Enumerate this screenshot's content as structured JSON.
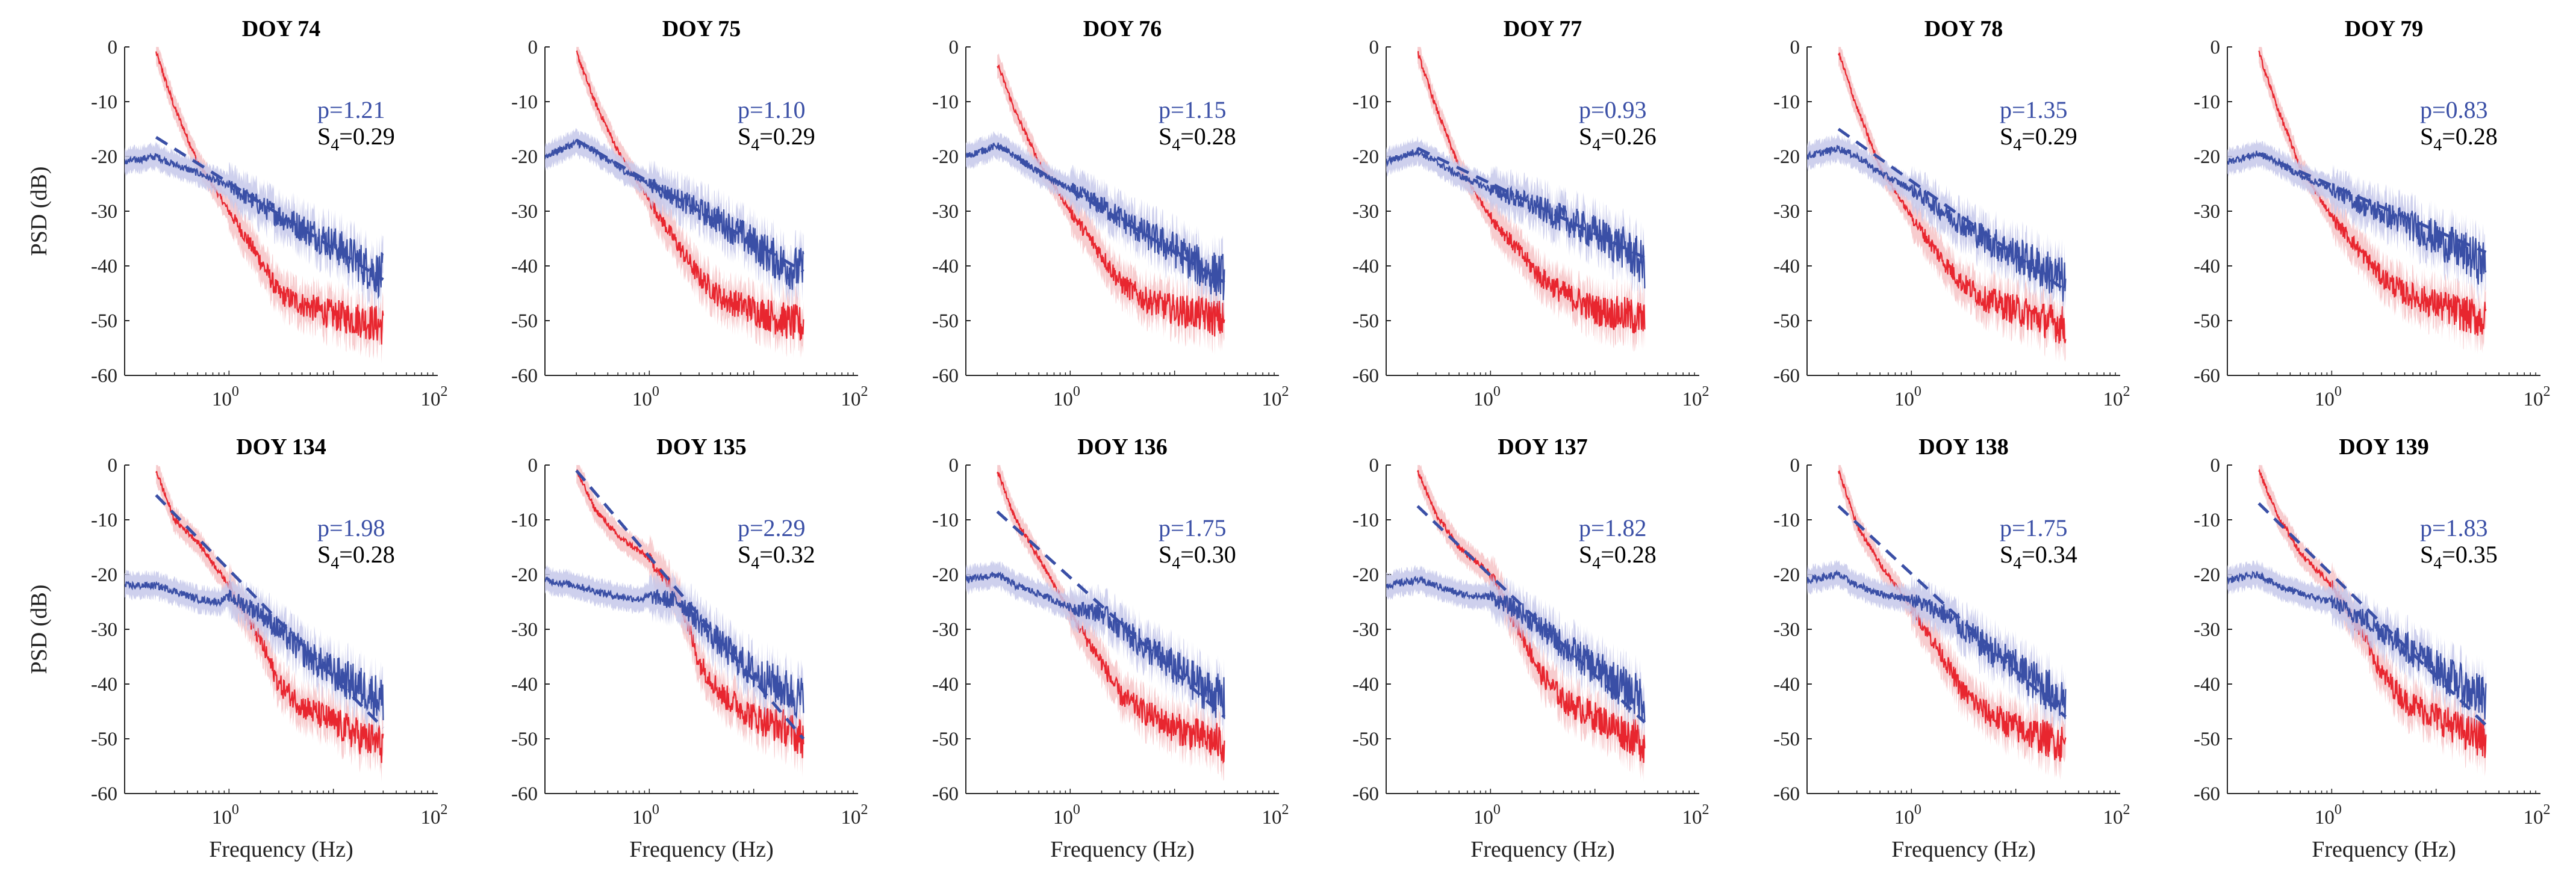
{
  "chart_data": {
    "type": "line",
    "layout": "2 rows x 6 columns",
    "xlabel": "Frequency (Hz)",
    "ylabel": "PSD (dB)",
    "xscale": "log",
    "xlim": [
      0.1,
      100
    ],
    "ylim": [
      -60,
      0
    ],
    "xticks": [
      {
        "value": 1,
        "base": "10",
        "exp": "0"
      },
      {
        "value": 100,
        "base": "10",
        "exp": "2"
      }
    ],
    "yticks": [
      0,
      -10,
      -20,
      -30,
      -40,
      -50,
      -60
    ],
    "series_colors": {
      "blue": "#3a4fa6",
      "red": "#e8262f",
      "blue_band": "#c5c8ea",
      "red_band": "#f6c3c6"
    },
    "panels": [
      {
        "title": "DOY 74",
        "p": "p=1.21",
        "s4": "=0.29",
        "fit": [
          [
            0.2,
            -16.5
          ],
          [
            30,
            -42.5
          ]
        ],
        "blue": [
          [
            0.1,
            -21
          ],
          [
            0.2,
            -20
          ],
          [
            0.3,
            -21.5
          ],
          [
            0.5,
            -23
          ],
          [
            1,
            -25.5
          ],
          [
            2,
            -29
          ],
          [
            5,
            -33
          ],
          [
            10,
            -36
          ],
          [
            20,
            -40
          ],
          [
            30,
            -42
          ]
        ],
        "red": [
          [
            0.2,
            -1
          ],
          [
            0.3,
            -11
          ],
          [
            0.5,
            -21
          ],
          [
            1,
            -30
          ],
          [
            2,
            -39
          ],
          [
            3,
            -45
          ],
          [
            5,
            -47
          ],
          [
            10,
            -49
          ],
          [
            20,
            -50
          ],
          [
            30,
            -51
          ]
        ]
      },
      {
        "title": "DOY 75",
        "p": "p=1.10",
        "s4": "=0.29",
        "fit": [
          [
            0.2,
            -17
          ],
          [
            30,
            -41
          ]
        ],
        "blue": [
          [
            0.1,
            -20
          ],
          [
            0.2,
            -17.5
          ],
          [
            0.3,
            -19
          ],
          [
            0.5,
            -22
          ],
          [
            1,
            -25
          ],
          [
            2,
            -28
          ],
          [
            5,
            -32
          ],
          [
            10,
            -36
          ],
          [
            20,
            -40
          ],
          [
            30,
            -41
          ]
        ],
        "red": [
          [
            0.2,
            -1
          ],
          [
            0.3,
            -10
          ],
          [
            0.5,
            -19
          ],
          [
            1,
            -28
          ],
          [
            2,
            -37
          ],
          [
            3,
            -42
          ],
          [
            5,
            -46
          ],
          [
            10,
            -48
          ],
          [
            20,
            -50
          ],
          [
            30,
            -51
          ]
        ]
      },
      {
        "title": "DOY 76",
        "p": "p=1.15",
        "s4": "=0.28",
        "fit": [
          [
            0.2,
            -18
          ],
          [
            30,
            -43
          ]
        ],
        "blue": [
          [
            0.1,
            -20
          ],
          [
            0.2,
            -18
          ],
          [
            0.3,
            -20
          ],
          [
            0.5,
            -23
          ],
          [
            1,
            -26
          ],
          [
            2,
            -29
          ],
          [
            5,
            -34
          ],
          [
            10,
            -37
          ],
          [
            20,
            -41
          ],
          [
            30,
            -42
          ]
        ],
        "red": [
          [
            0.2,
            -3
          ],
          [
            0.3,
            -12
          ],
          [
            0.5,
            -21
          ],
          [
            1,
            -30
          ],
          [
            2,
            -38
          ],
          [
            3,
            -43
          ],
          [
            5,
            -46
          ],
          [
            10,
            -48
          ],
          [
            20,
            -49
          ],
          [
            30,
            -50
          ]
        ]
      },
      {
        "title": "DOY 77",
        "p": "p=0.93",
        "s4": "=0.26",
        "fit": [
          [
            0.2,
            -18.5
          ],
          [
            30,
            -38.5
          ]
        ],
        "blue": [
          [
            0.1,
            -21
          ],
          [
            0.2,
            -19
          ],
          [
            0.3,
            -21
          ],
          [
            0.5,
            -23.5
          ],
          [
            1,
            -26
          ],
          [
            2,
            -28
          ],
          [
            5,
            -31.5
          ],
          [
            10,
            -34
          ],
          [
            20,
            -37
          ],
          [
            30,
            -40
          ]
        ],
        "red": [
          [
            0.2,
            -1
          ],
          [
            0.3,
            -11
          ],
          [
            0.5,
            -22
          ],
          [
            1,
            -31
          ],
          [
            2,
            -38
          ],
          [
            3,
            -42
          ],
          [
            5,
            -45
          ],
          [
            10,
            -48
          ],
          [
            20,
            -49
          ],
          [
            30,
            -50
          ]
        ]
      },
      {
        "title": "DOY 78",
        "p": "p=1.35",
        "s4": "=0.29",
        "fit": [
          [
            0.2,
            -15
          ],
          [
            30,
            -44.5
          ]
        ],
        "blue": [
          [
            0.1,
            -20
          ],
          [
            0.2,
            -18.5
          ],
          [
            0.3,
            -20
          ],
          [
            0.5,
            -23
          ],
          [
            1,
            -26
          ],
          [
            2,
            -30
          ],
          [
            5,
            -35
          ],
          [
            10,
            -38
          ],
          [
            20,
            -41
          ],
          [
            30,
            -43
          ]
        ],
        "red": [
          [
            0.2,
            -1
          ],
          [
            0.3,
            -11
          ],
          [
            0.5,
            -22
          ],
          [
            1,
            -31
          ],
          [
            2,
            -39
          ],
          [
            3,
            -43
          ],
          [
            5,
            -46
          ],
          [
            10,
            -48
          ],
          [
            20,
            -50
          ],
          [
            30,
            -51
          ]
        ]
      },
      {
        "title": "DOY 79",
        "p": "p=0.83",
        "s4": "=0.28",
        "fit": [
          [
            0.2,
            -19.5
          ],
          [
            30,
            -37.5
          ]
        ],
        "blue": [
          [
            0.1,
            -21
          ],
          [
            0.2,
            -19.5
          ],
          [
            0.3,
            -21
          ],
          [
            0.5,
            -23.5
          ],
          [
            1,
            -26
          ],
          [
            2,
            -29
          ],
          [
            5,
            -32
          ],
          [
            10,
            -35
          ],
          [
            20,
            -38
          ],
          [
            30,
            -40
          ]
        ],
        "red": [
          [
            0.2,
            -1
          ],
          [
            0.3,
            -11
          ],
          [
            0.5,
            -22
          ],
          [
            1,
            -31
          ],
          [
            2,
            -38
          ],
          [
            3,
            -42
          ],
          [
            5,
            -45
          ],
          [
            10,
            -47
          ],
          [
            20,
            -49
          ],
          [
            30,
            -50
          ]
        ]
      },
      {
        "title": "DOY 134",
        "p": "p=1.98",
        "s4": "=0.28",
        "fit": [
          [
            0.2,
            -5.5
          ],
          [
            30,
            -48
          ]
        ],
        "blue": [
          [
            0.1,
            -22
          ],
          [
            0.2,
            -22
          ],
          [
            0.3,
            -23
          ],
          [
            0.5,
            -24.5
          ],
          [
            0.8,
            -25
          ],
          [
            1,
            -24
          ],
          [
            2,
            -27
          ],
          [
            5,
            -34
          ],
          [
            10,
            -38
          ],
          [
            20,
            -41
          ],
          [
            30,
            -43
          ]
        ],
        "red": [
          [
            0.2,
            -1
          ],
          [
            0.3,
            -10
          ],
          [
            0.5,
            -14
          ],
          [
            1,
            -22
          ],
          [
            2,
            -32
          ],
          [
            3,
            -40
          ],
          [
            5,
            -44
          ],
          [
            10,
            -47
          ],
          [
            20,
            -50
          ],
          [
            30,
            -51
          ]
        ]
      },
      {
        "title": "DOY 135",
        "p": "p=2.29",
        "s4": "=0.32",
        "fit": [
          [
            0.2,
            -1
          ],
          [
            30,
            -50
          ]
        ],
        "blue": [
          [
            0.1,
            -21
          ],
          [
            0.2,
            -22
          ],
          [
            0.3,
            -23
          ],
          [
            0.5,
            -24
          ],
          [
            0.8,
            -24.5
          ],
          [
            1,
            -24
          ],
          [
            2,
            -25
          ],
          [
            5,
            -33
          ],
          [
            10,
            -38
          ],
          [
            20,
            -41
          ],
          [
            30,
            -43
          ]
        ],
        "red": [
          [
            0.2,
            -1
          ],
          [
            0.3,
            -8
          ],
          [
            0.5,
            -13
          ],
          [
            1,
            -17
          ],
          [
            2,
            -25
          ],
          [
            3,
            -36
          ],
          [
            5,
            -42
          ],
          [
            10,
            -46
          ],
          [
            20,
            -48
          ],
          [
            30,
            -50
          ]
        ]
      },
      {
        "title": "DOY 136",
        "p": "p=1.75",
        "s4": "=0.30",
        "fit": [
          [
            0.2,
            -8.5
          ],
          [
            30,
            -46
          ]
        ],
        "blue": [
          [
            0.1,
            -21
          ],
          [
            0.2,
            -20
          ],
          [
            0.3,
            -22
          ],
          [
            0.5,
            -23.5
          ],
          [
            1,
            -26
          ],
          [
            2,
            -27
          ],
          [
            5,
            -33
          ],
          [
            10,
            -37
          ],
          [
            20,
            -41
          ],
          [
            30,
            -43
          ]
        ],
        "red": [
          [
            0.2,
            -1
          ],
          [
            0.3,
            -10
          ],
          [
            0.5,
            -17
          ],
          [
            1,
            -27
          ],
          [
            2,
            -36
          ],
          [
            3,
            -42
          ],
          [
            5,
            -45
          ],
          [
            10,
            -48
          ],
          [
            20,
            -50
          ],
          [
            30,
            -51
          ]
        ]
      },
      {
        "title": "DOY 137",
        "p": "p=1.82",
        "s4": "=0.28",
        "fit": [
          [
            0.2,
            -7.5
          ],
          [
            30,
            -47
          ]
        ],
        "blue": [
          [
            0.1,
            -22
          ],
          [
            0.2,
            -21
          ],
          [
            0.3,
            -22
          ],
          [
            0.5,
            -23.5
          ],
          [
            0.8,
            -24
          ],
          [
            1,
            -24
          ],
          [
            2,
            -27
          ],
          [
            5,
            -33
          ],
          [
            10,
            -37
          ],
          [
            20,
            -41
          ],
          [
            30,
            -43
          ]
        ],
        "red": [
          [
            0.2,
            -1
          ],
          [
            0.3,
            -9
          ],
          [
            0.5,
            -15
          ],
          [
            1,
            -20
          ],
          [
            2,
            -31
          ],
          [
            3,
            -38
          ],
          [
            5,
            -43
          ],
          [
            10,
            -46
          ],
          [
            20,
            -49
          ],
          [
            30,
            -51
          ]
        ]
      },
      {
        "title": "DOY 138",
        "p": "p=1.75",
        "s4": "=0.34",
        "fit": [
          [
            0.2,
            -7.5
          ],
          [
            30,
            -46
          ]
        ],
        "blue": [
          [
            0.1,
            -21
          ],
          [
            0.2,
            -20
          ],
          [
            0.3,
            -22
          ],
          [
            0.5,
            -23.5
          ],
          [
            1,
            -24.5
          ],
          [
            2,
            -27
          ],
          [
            5,
            -33
          ],
          [
            10,
            -37
          ],
          [
            20,
            -41
          ],
          [
            30,
            -43
          ]
        ],
        "red": [
          [
            0.2,
            -1
          ],
          [
            0.3,
            -11
          ],
          [
            0.5,
            -18
          ],
          [
            1,
            -26
          ],
          [
            2,
            -35
          ],
          [
            3,
            -41
          ],
          [
            5,
            -45
          ],
          [
            10,
            -48
          ],
          [
            20,
            -50
          ],
          [
            30,
            -51
          ]
        ]
      },
      {
        "title": "DOY 139",
        "p": "p=1.83",
        "s4": "=0.35",
        "fit": [
          [
            0.2,
            -7
          ],
          [
            30,
            -47.5
          ]
        ],
        "blue": [
          [
            0.1,
            -21
          ],
          [
            0.2,
            -20
          ],
          [
            0.3,
            -22
          ],
          [
            0.5,
            -23.5
          ],
          [
            1,
            -25
          ],
          [
            2,
            -28
          ],
          [
            5,
            -33
          ],
          [
            10,
            -37
          ],
          [
            20,
            -41
          ],
          [
            30,
            -43
          ]
        ],
        "red": [
          [
            0.2,
            -1
          ],
          [
            0.3,
            -9
          ],
          [
            0.5,
            -16
          ],
          [
            1,
            -22
          ],
          [
            2,
            -31
          ],
          [
            3,
            -38
          ],
          [
            5,
            -43
          ],
          [
            10,
            -46
          ],
          [
            20,
            -49
          ],
          [
            30,
            -50
          ]
        ]
      }
    ]
  }
}
